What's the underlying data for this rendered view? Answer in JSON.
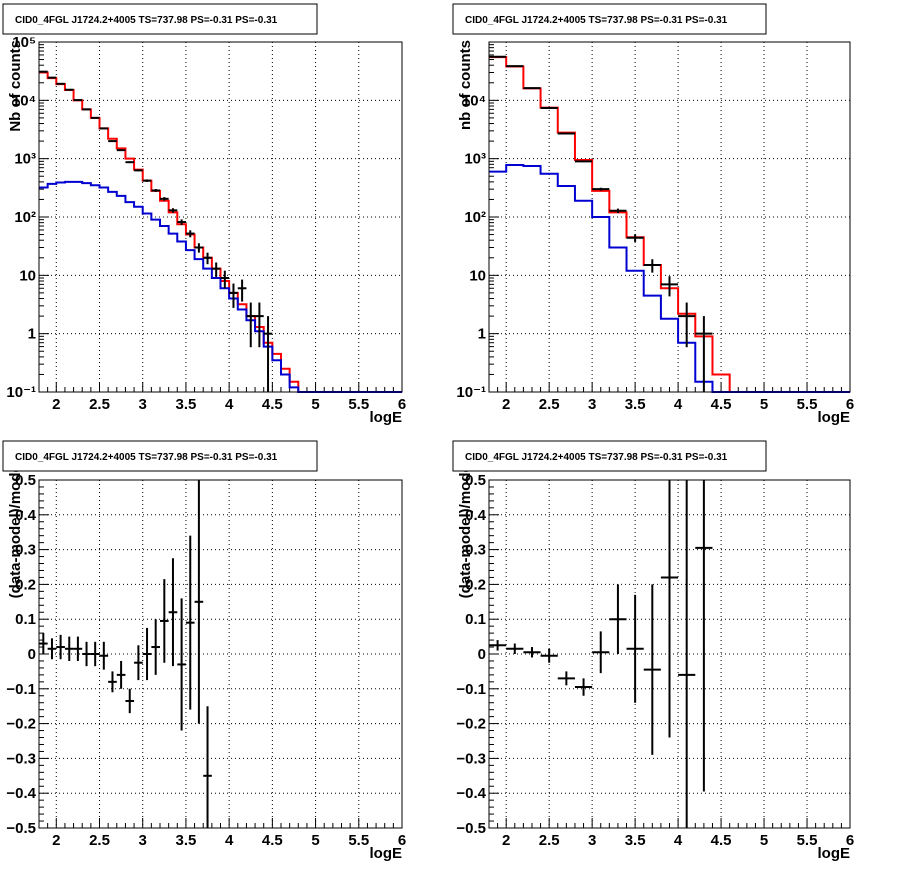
{
  "colors": {
    "data": "#000000",
    "total_model": "#ff0000",
    "source_model": "#0000d0"
  },
  "chart_data": [
    {
      "type": "line",
      "panel": "top-left",
      "title": "CID0_4FGL J1724.2+4005 TS=737.98 PS=-0.31 PS=-0.31",
      "xlabel": "logE",
      "ylabel": "Nb of counts",
      "xlim": [
        1.8,
        6
      ],
      "ylim": [
        0.1,
        100000
      ],
      "yscale": "log",
      "grid": true,
      "x_ticks": [
        "2",
        "2.5",
        "3",
        "3.5",
        "4",
        "4.5",
        "5",
        "5.5",
        "6"
      ],
      "y_ticks": [
        "10⁻¹",
        "1",
        "10",
        "10²",
        "10³",
        "10⁴",
        "10⁵"
      ],
      "bin_edges": [
        1.8,
        1.9,
        2.0,
        2.1,
        2.2,
        2.3,
        2.4,
        2.5,
        2.6,
        2.7,
        2.8,
        2.9,
        3.0,
        3.1,
        3.2,
        3.3,
        3.4,
        3.5,
        3.6,
        3.7,
        3.8,
        3.9,
        4.0,
        4.1,
        4.2,
        4.3,
        4.4,
        4.5,
        4.6,
        4.7,
        4.8,
        4.9,
        5.0,
        5.1,
        5.2,
        5.3,
        5.4,
        5.5,
        5.6,
        5.7,
        5.8,
        5.9,
        6.0
      ],
      "series": [
        {
          "kind": "total-model",
          "values": [
            30000,
            24000,
            19000,
            15000,
            10000,
            7000,
            5000,
            3300,
            2200,
            1500,
            1000,
            650,
            420,
            280,
            190,
            120,
            75,
            50,
            30,
            20,
            13,
            8,
            5,
            3.2,
            2,
            1.3,
            0.7,
            0.45,
            0.25,
            0.15,
            0.1,
            0.1,
            0.1,
            0.1,
            0.1,
            0.1,
            0.1,
            0.1,
            0.1,
            0.1,
            0.1,
            0.1
          ]
        },
        {
          "kind": "source-model",
          "values": [
            320,
            370,
            390,
            400,
            400,
            380,
            350,
            320,
            270,
            230,
            180,
            150,
            115,
            90,
            70,
            52,
            38,
            27,
            19,
            13,
            9,
            6,
            4,
            2.6,
            1.7,
            1.1,
            0.6,
            0.35,
            0.2,
            0.12,
            0.1,
            0.1,
            0.1,
            0.1,
            0.1,
            0.1,
            0.1,
            0.1,
            0.1,
            0.1,
            0.1,
            0.1
          ]
        },
        {
          "kind": "data",
          "points": [
            [
              1.85,
              31000
            ],
            [
              1.95,
              24500
            ],
            [
              2.05,
              19200
            ],
            [
              2.15,
              15200
            ],
            [
              2.25,
              10100
            ],
            [
              2.35,
              7000
            ],
            [
              2.45,
              5000
            ],
            [
              2.55,
              3300
            ],
            [
              2.65,
              2000
            ],
            [
              2.75,
              1400
            ],
            [
              2.85,
              870
            ],
            [
              2.95,
              630
            ],
            [
              3.05,
              420
            ],
            [
              3.15,
              285
            ],
            [
              3.25,
              205
            ],
            [
              3.35,
              130
            ],
            [
              3.45,
              82
            ],
            [
              3.55,
              52
            ],
            [
              3.65,
              30
            ],
            [
              3.75,
              20
            ],
            [
              3.85,
              13
            ],
            [
              3.95,
              9
            ],
            [
              4.05,
              5
            ],
            [
              4.15,
              6
            ],
            [
              4.25,
              2
            ],
            [
              4.35,
              2
            ],
            [
              4.45,
              1
            ]
          ]
        }
      ]
    },
    {
      "type": "line",
      "panel": "top-right",
      "title": "CID0_4FGL J1724.2+4005 TS=737.98 PS=-0.31 PS=-0.31",
      "xlabel": "logE",
      "ylabel": "nb of counts",
      "xlim": [
        1.8,
        6
      ],
      "ylim": [
        0.1,
        100000
      ],
      "yscale": "log",
      "grid": true,
      "x_ticks": [
        "2",
        "2.5",
        "3",
        "3.5",
        "4",
        "4.5",
        "5",
        "5.5",
        "6"
      ],
      "y_ticks": [
        "10⁻¹",
        "1",
        "10",
        "10²",
        "10³",
        "10⁴"
      ],
      "bin_edges": [
        1.8,
        2.0,
        2.2,
        2.4,
        2.6,
        2.8,
        3.0,
        3.2,
        3.4,
        3.6,
        3.8,
        4.0,
        4.2,
        4.4,
        4.6,
        4.8,
        5.0,
        5.2,
        5.4,
        5.6,
        5.8,
        6.0
      ],
      "series": [
        {
          "kind": "total-model",
          "values": [
            55000,
            38000,
            16000,
            7500,
            2800,
            950,
            280,
            120,
            45,
            15,
            6,
            2.2,
            0.9,
            0.2,
            0.1,
            0.1,
            0.1,
            0.1,
            0.1,
            0.1,
            0.1
          ]
        },
        {
          "kind": "source-model",
          "values": [
            600,
            780,
            750,
            550,
            340,
            190,
            100,
            30,
            12,
            4.5,
            1.8,
            0.7,
            0.15,
            0.1,
            0.1,
            0.1,
            0.1,
            0.1,
            0.1,
            0.1,
            0.1
          ]
        },
        {
          "kind": "data",
          "points": [
            [
              1.9,
              56000
            ],
            [
              2.1,
              38500
            ],
            [
              2.3,
              16200
            ],
            [
              2.5,
              7400
            ],
            [
              2.7,
              2700
            ],
            [
              2.9,
              900
            ],
            [
              3.1,
              300
            ],
            [
              3.3,
              128
            ],
            [
              3.5,
              44
            ],
            [
              3.7,
              15
            ],
            [
              3.9,
              7
            ],
            [
              4.1,
              2
            ],
            [
              4.3,
              1
            ]
          ]
        }
      ]
    },
    {
      "type": "scatter",
      "panel": "bottom-left",
      "title": "CID0_4FGL J1724.2+4005 TS=737.98 PS=-0.31 PS=-0.31",
      "xlabel": "logE",
      "ylabel": "(data-model)/model",
      "xlim": [
        1.8,
        6
      ],
      "ylim": [
        -0.5,
        0.5
      ],
      "grid": true,
      "x_ticks": [
        "2",
        "2.5",
        "3",
        "3.5",
        "4",
        "4.5",
        "5",
        "5.5",
        "6"
      ],
      "y_ticks": [
        "−0.5",
        "−0.4",
        "−0.3",
        "−0.2",
        "−0.1",
        "0",
        "0.1",
        "0.2",
        "0.3",
        "0.4",
        "0.5"
      ],
      "points": [
        {
          "x": 1.85,
          "y": 0.03,
          "err": 0.03
        },
        {
          "x": 1.95,
          "y": 0.015,
          "err": 0.03
        },
        {
          "x": 2.05,
          "y": 0.02,
          "err": 0.035
        },
        {
          "x": 2.15,
          "y": 0.015,
          "err": 0.035
        },
        {
          "x": 2.25,
          "y": 0.015,
          "err": 0.035
        },
        {
          "x": 2.35,
          "y": 0.0,
          "err": 0.035
        },
        {
          "x": 2.45,
          "y": 0.0,
          "err": 0.035
        },
        {
          "x": 2.55,
          "y": -0.005,
          "err": 0.04
        },
        {
          "x": 2.65,
          "y": -0.08,
          "err": 0.03
        },
        {
          "x": 2.75,
          "y": -0.06,
          "err": 0.04
        },
        {
          "x": 2.85,
          "y": -0.135,
          "err": 0.035
        },
        {
          "x": 2.95,
          "y": -0.025,
          "err": 0.05
        },
        {
          "x": 3.05,
          "y": 0.0,
          "err": 0.075
        },
        {
          "x": 3.15,
          "y": 0.02,
          "err": 0.08
        },
        {
          "x": 3.25,
          "y": 0.095,
          "err": 0.12
        },
        {
          "x": 3.35,
          "y": 0.12,
          "err": 0.155
        },
        {
          "x": 3.45,
          "y": -0.03,
          "err": 0.19
        },
        {
          "x": 3.55,
          "y": 0.09,
          "err": 0.25
        },
        {
          "x": 3.65,
          "y": 0.15,
          "err": 0.35
        },
        {
          "x": 3.75,
          "y": -0.35,
          "err": 0.2
        }
      ]
    },
    {
      "type": "scatter",
      "panel": "bottom-right",
      "title": "CID0_4FGL J1724.2+4005 TS=737.98 PS=-0.31 PS=-0.31",
      "xlabel": "logE",
      "ylabel": "(data-model)/model",
      "xlim": [
        1.8,
        6
      ],
      "ylim": [
        -0.5,
        0.5
      ],
      "grid": true,
      "x_ticks": [
        "2",
        "2.5",
        "3",
        "3.5",
        "4",
        "4.5",
        "5",
        "5.5",
        "6"
      ],
      "y_ticks": [
        "−0.5",
        "−0.4",
        "−0.3",
        "−0.2",
        "−0.1",
        "0",
        "0.1",
        "0.2",
        "0.3",
        "0.4",
        "0.5"
      ],
      "points": [
        {
          "x": 1.9,
          "y": 0.025,
          "err": 0.015
        },
        {
          "x": 2.1,
          "y": 0.015,
          "err": 0.015
        },
        {
          "x": 2.3,
          "y": 0.005,
          "err": 0.015
        },
        {
          "x": 2.5,
          "y": -0.005,
          "err": 0.02
        },
        {
          "x": 2.7,
          "y": -0.07,
          "err": 0.02
        },
        {
          "x": 2.9,
          "y": -0.095,
          "err": 0.025
        },
        {
          "x": 3.1,
          "y": 0.005,
          "err": 0.06
        },
        {
          "x": 3.3,
          "y": 0.1,
          "err": 0.1
        },
        {
          "x": 3.5,
          "y": 0.015,
          "err": 0.155
        },
        {
          "x": 3.7,
          "y": -0.045,
          "err": 0.245
        },
        {
          "x": 3.9,
          "y": 0.22,
          "err": 0.46
        },
        {
          "x": 4.1,
          "y": -0.06,
          "err": 0.7
        },
        {
          "x": 4.3,
          "y": 0.305,
          "err": 0.7
        }
      ]
    }
  ]
}
